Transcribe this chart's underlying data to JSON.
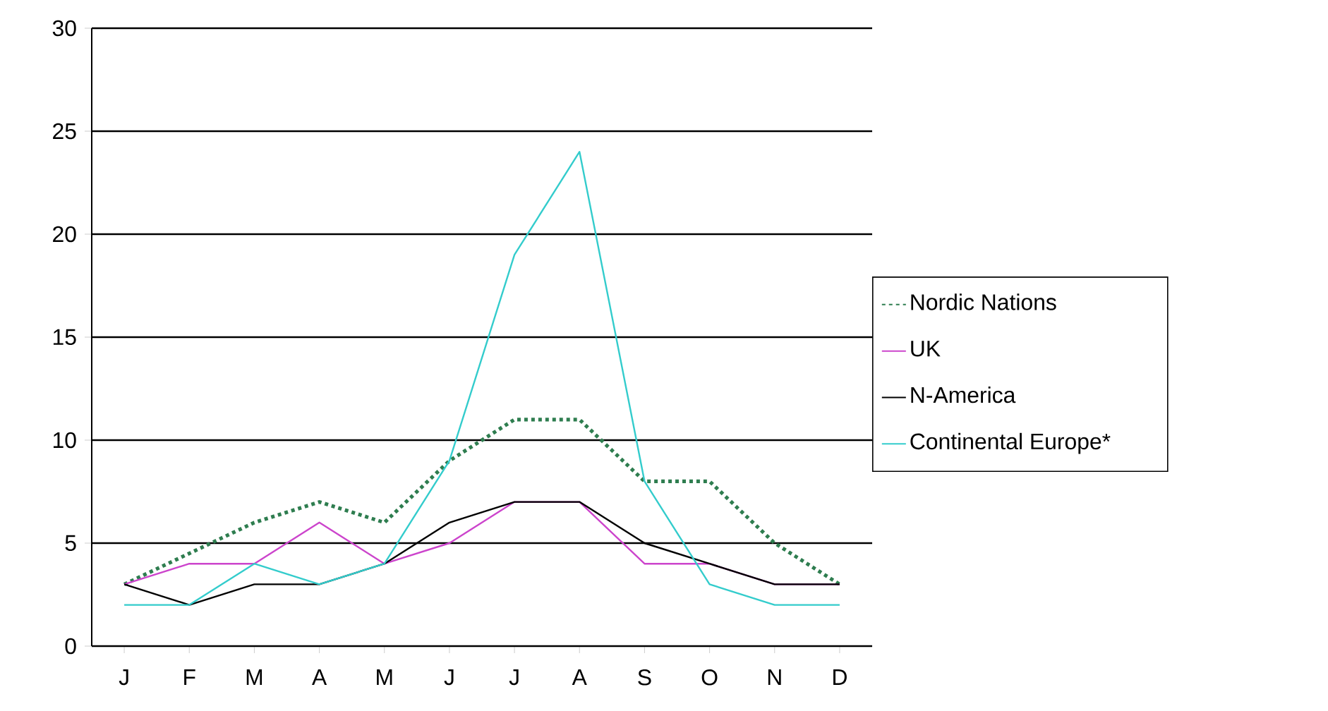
{
  "chart_data": {
    "type": "line",
    "categories": [
      "J",
      "F",
      "M",
      "A",
      "M",
      "J",
      "J",
      "A",
      "S",
      "O",
      "N",
      "D"
    ],
    "series": [
      {
        "name": "Nordic Nations",
        "color": "#2e7d4f",
        "line_style": "dotted",
        "values": [
          3,
          4.5,
          6,
          7,
          6,
          9,
          11,
          11,
          8,
          8,
          5,
          3
        ]
      },
      {
        "name": "UK",
        "color": "#cc44cc",
        "line_style": "solid",
        "values": [
          3,
          4,
          4,
          6,
          4,
          5,
          7,
          7,
          4,
          4,
          3,
          3
        ]
      },
      {
        "name": "N-America",
        "color": "#000000",
        "line_style": "solid",
        "values": [
          3,
          2,
          3,
          3,
          4,
          6,
          7,
          7,
          5,
          4,
          3,
          3
        ]
      },
      {
        "name": "Continental Europe*",
        "color": "#33cccc",
        "line_style": "solid",
        "values": [
          2,
          2,
          4,
          3,
          4,
          9,
          19,
          24,
          8,
          3,
          2,
          2
        ]
      }
    ],
    "ylim": [
      0,
      30
    ],
    "yticks": [
      0,
      5,
      10,
      15,
      20,
      25,
      30
    ],
    "grid": "y",
    "legend": "right",
    "marker": "none"
  }
}
